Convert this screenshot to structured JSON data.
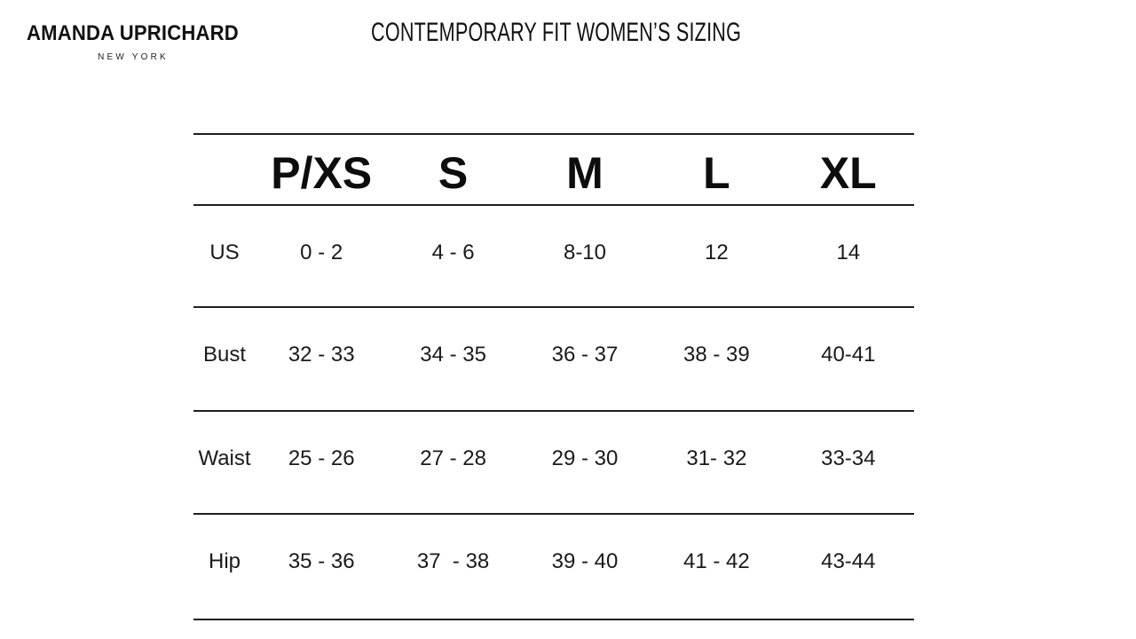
{
  "brand": {
    "name": "AMANDA UPRICHARD",
    "subtitle": "NEW YORK"
  },
  "title": "CONTEMPORARY FIT WOMEN’S SIZING",
  "colors": {
    "text": "#1a1a1a",
    "line": "#1f1f1f",
    "background": "#ffffff"
  },
  "size_chart": {
    "sizes": [
      "P/XS",
      "S",
      "M",
      "L",
      "XL"
    ],
    "rows": [
      {
        "label": "US",
        "values": [
          "0 - 2",
          "4 - 6",
          "8-10",
          "12",
          "14"
        ]
      },
      {
        "label": "Bust",
        "values": [
          "32 - 33",
          "34 - 35",
          "36 - 37",
          "38 - 39",
          "40-41"
        ]
      },
      {
        "label": "Waist",
        "values": [
          "25 - 26",
          "27 - 28",
          "29 - 30",
          "31- 32",
          "33-34"
        ]
      },
      {
        "label": "Hip",
        "values": [
          "35 - 36",
          "37  - 38",
          "39 - 40",
          "41 - 42",
          "43-44"
        ]
      }
    ]
  }
}
